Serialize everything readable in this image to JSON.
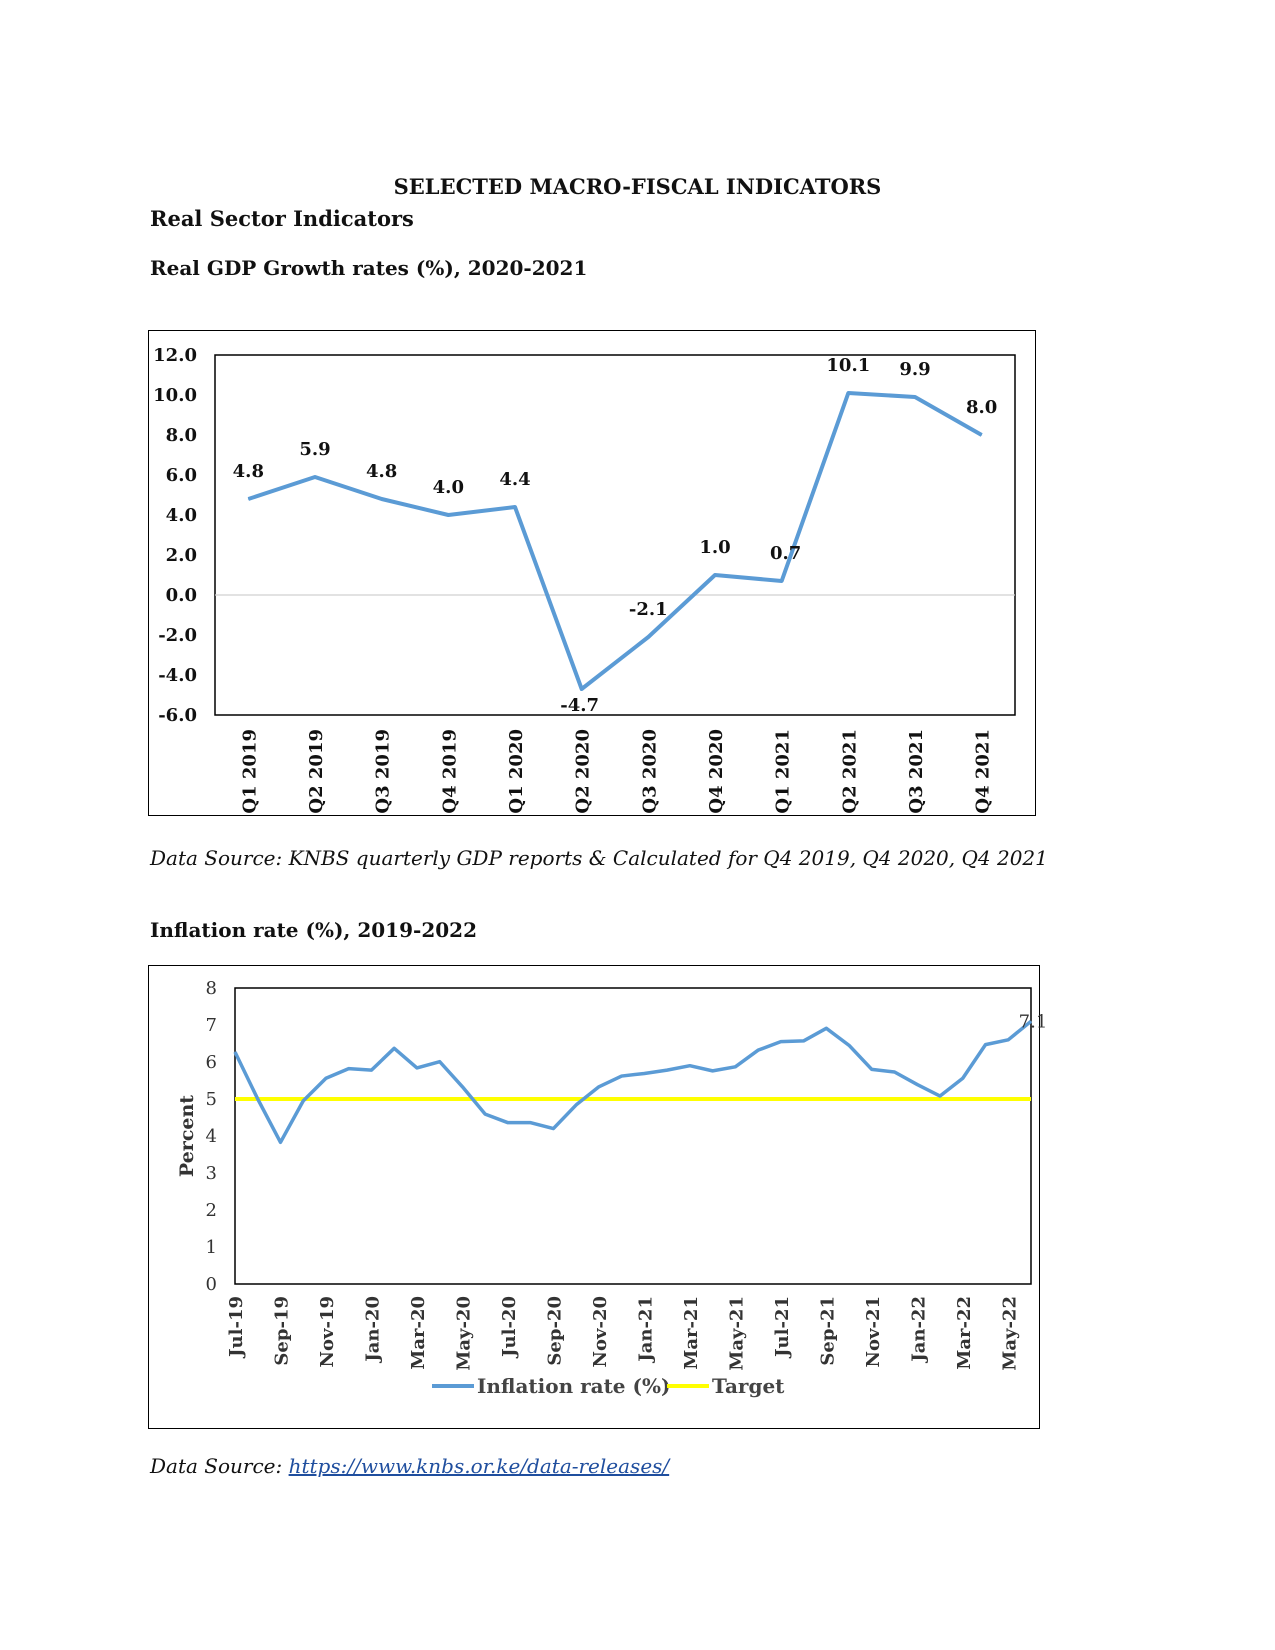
{
  "page": {
    "title": "SELECTED MACRO-FISCAL INDICATORS",
    "section": "Real Sector Indicators"
  },
  "gdp": {
    "heading": "Real GDP Growth rates (%), 2020-2021",
    "source": "Data Source: KNBS quarterly GDP reports & Calculated for Q4 2019, Q4 2020, Q4 2021"
  },
  "inflation": {
    "heading": "Inflation rate (%), 2019-2022",
    "source_prefix": "Data Source: ",
    "source_link": "https://www.knbs.or.ke/data-releases/"
  },
  "chart_data": [
    {
      "type": "line",
      "categories": [
        "Q1 2019",
        "Q2 2019",
        "Q3 2019",
        "Q4 2019",
        "Q1 2020",
        "Q2 2020",
        "Q3 2020",
        "Q4 2020",
        "Q1 2021",
        "Q2 2021",
        "Q3 2021",
        "Q4 2021"
      ],
      "values": [
        4.8,
        5.9,
        4.8,
        4.0,
        4.4,
        -4.7,
        -2.1,
        1.0,
        0.7,
        10.1,
        9.9,
        8.0
      ],
      "data_labels": [
        "4.8",
        "5.9",
        "4.8",
        "4.0",
        "4.4",
        "-4.7",
        "-2.1",
        "1.0",
        "0.7",
        "10.1",
        "9.9",
        "8.0"
      ],
      "yticks": [
        "-6.0",
        "-4.0",
        "-2.0",
        "0.0",
        "2.0",
        "4.0",
        "6.0",
        "8.0",
        "10.0",
        "12.0"
      ],
      "ylim": [
        -6,
        12
      ],
      "color": "#5b9bd5",
      "grid": false
    },
    {
      "type": "line",
      "x": [
        "Jul-19",
        "Aug-19",
        "Sep-19",
        "Oct-19",
        "Nov-19",
        "Dec-19",
        "Jan-20",
        "Feb-20",
        "Mar-20",
        "Apr-20",
        "May-20",
        "Jun-20",
        "Jul-20",
        "Aug-20",
        "Sep-20",
        "Oct-20",
        "Nov-20",
        "Dec-20",
        "Jan-21",
        "Feb-21",
        "Mar-21",
        "Apr-21",
        "May-21",
        "Jun-21",
        "Jul-21",
        "Aug-21",
        "Sep-21",
        "Oct-21",
        "Nov-21",
        "Dec-21",
        "Jan-22",
        "Feb-22",
        "Mar-22",
        "Apr-22",
        "May-22",
        "Jun-22"
      ],
      "xtick_labels": [
        "Jul-19",
        "Sep-19",
        "Nov-19",
        "Jan-20",
        "Mar-20",
        "May-20",
        "Jul-20",
        "Sep-20",
        "Nov-20",
        "Jan-21",
        "Mar-21",
        "May-21",
        "Jul-21",
        "Sep-21",
        "Nov-21",
        "Jan-22",
        "Mar-22",
        "May-22"
      ],
      "ylabel": "Percent",
      "yticks": [
        "0",
        "1",
        "2",
        "3",
        "4",
        "5",
        "6",
        "7",
        "8"
      ],
      "ylim": [
        0,
        8
      ],
      "series": [
        {
          "name": "Inflation rate (%)",
          "color": "#5b9bd5",
          "values": [
            6.27,
            5.0,
            3.83,
            4.95,
            5.56,
            5.82,
            5.78,
            6.37,
            5.84,
            6.01,
            5.33,
            4.59,
            4.36,
            4.36,
            4.2,
            4.84,
            5.33,
            5.62,
            5.69,
            5.78,
            5.9,
            5.76,
            5.87,
            6.32,
            6.55,
            6.57,
            6.91,
            6.45,
            5.8,
            5.73,
            5.39,
            5.08,
            5.56,
            6.47,
            6.6,
            7.1
          ],
          "end_label": "7.1"
        },
        {
          "name": "Target",
          "color": "#ffff00",
          "values": [
            5,
            5,
            5,
            5,
            5,
            5,
            5,
            5,
            5,
            5,
            5,
            5,
            5,
            5,
            5,
            5,
            5,
            5,
            5,
            5,
            5,
            5,
            5,
            5,
            5,
            5,
            5,
            5,
            5,
            5,
            5,
            5,
            5,
            5,
            5,
            5
          ]
        }
      ],
      "legend": "bottom",
      "grid": false
    }
  ]
}
